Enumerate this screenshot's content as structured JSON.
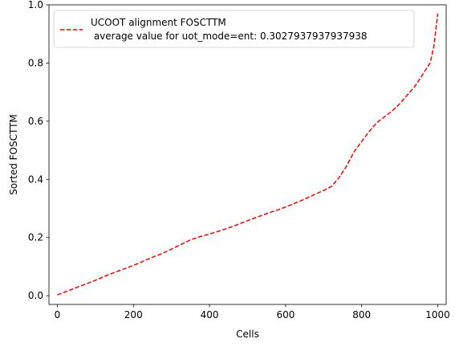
{
  "chart_data": {
    "type": "line",
    "title": "",
    "xlabel": "Cells",
    "ylabel": "Sorted FOSCTTM",
    "xlim": [
      -22,
      1022
    ],
    "ylim": [
      -0.03,
      1.0
    ],
    "xticks": [
      0,
      200,
      400,
      600,
      800,
      1000
    ],
    "xtick_labels": [
      "0",
      "200",
      "400",
      "600",
      "800",
      "1000"
    ],
    "yticks": [
      0.0,
      0.2,
      0.4,
      0.6,
      0.8,
      1.0
    ],
    "ytick_labels": [
      "0.0",
      "0.2",
      "0.4",
      "0.6",
      "0.8",
      "1.0"
    ],
    "grid": false,
    "legend_position": "top-left",
    "series": [
      {
        "name": "UCOOT alignment FOSCTTM\n average value for uot_mode=ent: 0.3027937937937938",
        "legend_lines": [
          "UCOOT alignment FOSCTTM",
          " average value for uot_mode=ent: 0.3027937937937938"
        ],
        "color": "#ff0000",
        "linestyle": "dashed",
        "x": [
          0,
          25,
          50,
          75,
          100,
          125,
          150,
          175,
          200,
          225,
          250,
          275,
          300,
          325,
          350,
          375,
          400,
          425,
          450,
          475,
          500,
          525,
          550,
          575,
          600,
          625,
          650,
          675,
          700,
          720,
          740,
          760,
          780,
          800,
          820,
          840,
          860,
          880,
          900,
          920,
          940,
          960,
          980,
          990,
          1000
        ],
        "values": [
          0.003,
          0.015,
          0.028,
          0.04,
          0.053,
          0.067,
          0.08,
          0.092,
          0.104,
          0.118,
          0.132,
          0.145,
          0.16,
          0.176,
          0.192,
          0.203,
          0.212,
          0.222,
          0.233,
          0.245,
          0.258,
          0.27,
          0.282,
          0.293,
          0.305,
          0.318,
          0.332,
          0.347,
          0.362,
          0.375,
          0.405,
          0.445,
          0.495,
          0.53,
          0.565,
          0.595,
          0.615,
          0.635,
          0.66,
          0.69,
          0.72,
          0.76,
          0.8,
          0.86,
          0.97
        ]
      }
    ]
  }
}
